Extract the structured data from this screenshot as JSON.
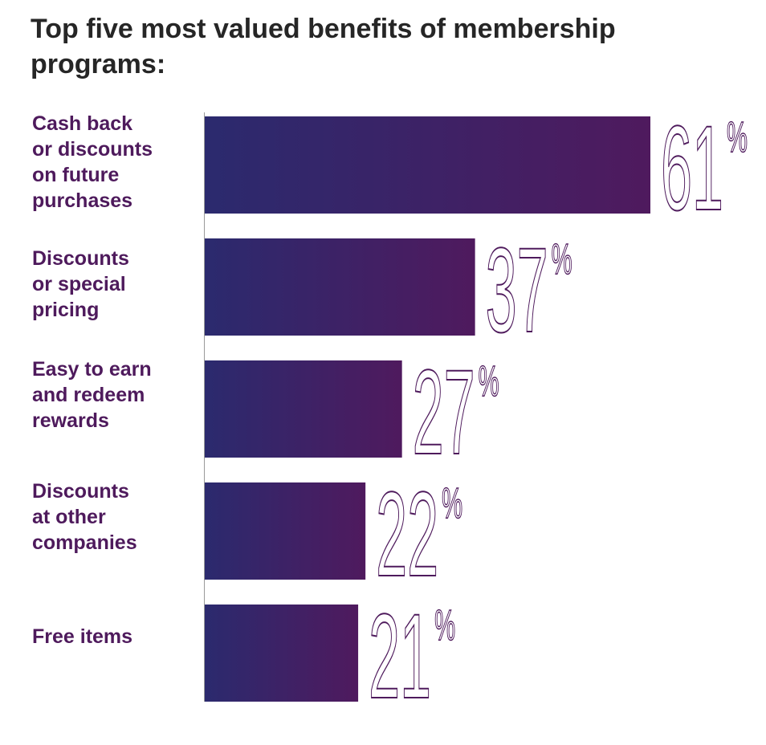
{
  "chart_data": {
    "type": "bar",
    "orientation": "horizontal",
    "title": "Top five most valued benefits of membership programs:",
    "categories": [
      "Cash back\nor discounts\non future\npurchases",
      "Discounts\nor special\npricing",
      "Easy to earn\nand redeem\nrewards",
      "Discounts\nat other\ncompanies",
      "Free items"
    ],
    "values": [
      61,
      37,
      27,
      22,
      21
    ],
    "value_labels": [
      "61",
      "37",
      "27",
      "22",
      "21"
    ],
    "unit": "%",
    "grid": false,
    "legend": "none"
  },
  "colors": {
    "title": "#262626",
    "label": "#4e1a5c",
    "bar_gradient_start": "#2b2a6e",
    "bar_gradient_end": "#4f1a5e",
    "value_outline": "#4e1a5c",
    "axis": "#9a9a9a"
  }
}
